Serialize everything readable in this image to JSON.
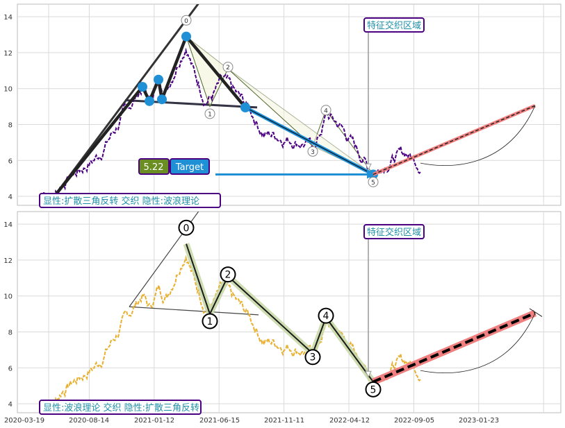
{
  "chart_data": [
    {
      "type": "line",
      "title": "",
      "xlabel": "",
      "ylabel": "",
      "yticks": [
        "4",
        "6",
        "8",
        "10",
        "12",
        "14"
      ],
      "ylim": [
        3.5,
        14.7
      ],
      "caption": "显性:扩散三角反转 交织 隐性:波浪理论",
      "zone_label": "特征交织区域",
      "target_value": "5.22",
      "target_label": "Target",
      "wave_labels": [
        "0",
        "1",
        "2",
        "3",
        "4",
        "5"
      ],
      "colors": {
        "price": "#4b0082",
        "markers": "#1f8fd6",
        "projection": "#f08080"
      }
    },
    {
      "type": "line",
      "title": "",
      "xlabel": "",
      "ylabel": "",
      "yticks": [
        "4",
        "6",
        "8",
        "10",
        "12",
        "14"
      ],
      "ylim": [
        3.5,
        14.7
      ],
      "caption": "显性:波浪理论 交织 隐性:扩散三角反转",
      "zone_label": "特征交织区域",
      "wave_labels": [
        "0",
        "1",
        "2",
        "3",
        "4",
        "5"
      ],
      "colors": {
        "price": "#e8b030",
        "wave": "#c8d8a8",
        "projection": "#f08080"
      }
    }
  ],
  "x_axis": {
    "tick_labels": [
      "2020-03-19",
      "2020-08-14",
      "2021-01-12",
      "2021-06-15",
      "2021-11-11",
      "2022-04-12",
      "2022-09-05",
      "2023-01-23"
    ]
  }
}
